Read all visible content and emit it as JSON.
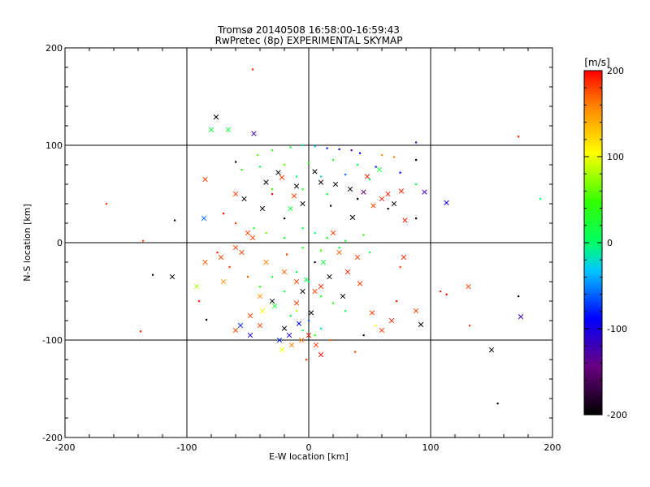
{
  "chart_data": {
    "type": "scatter",
    "title": "Tromsø 20140508 16:58:00-16:59:43",
    "subtitle": "RwPretec (8p) EXPERIMENTAL SKYMAP",
    "xlabel": "E-W location [km]",
    "ylabel": "N-S location [km]",
    "xlim": [
      -200,
      200
    ],
    "ylim": [
      -200,
      200
    ],
    "xticks": [
      "-200",
      "-100",
      "0",
      "100",
      "200"
    ],
    "yticks": [
      "-200",
      "-100",
      "0",
      "100",
      "200"
    ],
    "grid": true,
    "colorbar": {
      "label": "[m/s]",
      "range": [
        -200,
        200
      ],
      "ticks": [
        "-200",
        "-100",
        "0",
        "100",
        "200"
      ],
      "colors": [
        "#000000",
        "#6a0080",
        "#0000ff",
        "#00ffff",
        "#00ff00",
        "#ffff00",
        "#ff0000"
      ]
    },
    "cross_points": [
      [
        -76,
        129,
        -200
      ],
      [
        -80,
        116,
        20
      ],
      [
        -66,
        116,
        20
      ],
      [
        -45,
        112,
        -120
      ],
      [
        -85,
        65,
        180
      ],
      [
        -53,
        45,
        -200
      ],
      [
        -38,
        35,
        -200
      ],
      [
        -86,
        25,
        -60
      ],
      [
        -112,
        -35,
        -200
      ],
      [
        -92,
        -45,
        80
      ],
      [
        -70,
        -40,
        150
      ],
      [
        -46,
        5,
        180
      ],
      [
        -55,
        -10,
        180
      ],
      [
        -35,
        -20,
        160
      ],
      [
        -20,
        -30,
        170
      ],
      [
        -10,
        -40,
        180
      ],
      [
        -40,
        -55,
        150
      ],
      [
        -28,
        -65,
        20
      ],
      [
        -48,
        -75,
        180
      ],
      [
        -56,
        -85,
        -80
      ],
      [
        -38,
        -70,
        100
      ],
      [
        -20,
        -88,
        -200
      ],
      [
        -16,
        -95,
        -100
      ],
      [
        -8,
        -83,
        -90
      ],
      [
        -6,
        -100,
        160
      ],
      [
        6,
        -105,
        180
      ],
      [
        -14,
        -105,
        160
      ],
      [
        -22,
        -110,
        100
      ],
      [
        10,
        -115,
        200
      ],
      [
        0,
        -95,
        190
      ],
      [
        5,
        -50,
        180
      ],
      [
        10,
        -45,
        190
      ],
      [
        25,
        -10,
        170
      ],
      [
        40,
        -15,
        180
      ],
      [
        52,
        -72,
        180
      ],
      [
        60,
        -90,
        180
      ],
      [
        68,
        -80,
        190
      ],
      [
        88,
        -70,
        180
      ],
      [
        92,
        -84,
        -200
      ],
      [
        150,
        -110,
        -200
      ],
      [
        174,
        -76,
        -120
      ],
      [
        131,
        -45,
        180
      ],
      [
        113,
        41,
        -100
      ],
      [
        95,
        52,
        -120
      ],
      [
        76,
        53,
        190
      ],
      [
        79,
        23,
        190
      ],
      [
        60,
        45,
        190
      ],
      [
        53,
        38,
        180
      ],
      [
        36,
        26,
        -200
      ],
      [
        20,
        10,
        180
      ],
      [
        34,
        55,
        -200
      ],
      [
        10,
        62,
        -200
      ],
      [
        5,
        73,
        -200
      ],
      [
        -10,
        58,
        -200
      ],
      [
        -25,
        72,
        -200
      ],
      [
        -35,
        62,
        -200
      ],
      [
        -15,
        35,
        20
      ],
      [
        -5,
        40,
        -200
      ],
      [
        48,
        68,
        190
      ],
      [
        45,
        52,
        -150
      ],
      [
        65,
        50,
        190
      ],
      [
        58,
        75,
        20
      ],
      [
        -22,
        67,
        180
      ],
      [
        -60,
        50,
        180
      ],
      [
        -50,
        10,
        180
      ],
      [
        -60,
        -5,
        180
      ],
      [
        -72,
        -15,
        180
      ],
      [
        -85,
        -20,
        170
      ],
      [
        -30,
        -60,
        -200
      ],
      [
        -40,
        -85,
        180
      ],
      [
        -60,
        -90,
        180
      ],
      [
        -48,
        -95,
        -100
      ],
      [
        -24,
        -100,
        -80
      ],
      [
        -10,
        -62,
        180
      ],
      [
        17,
        -35,
        -200
      ],
      [
        28,
        -55,
        -200
      ],
      [
        12,
        -20,
        20
      ],
      [
        -5,
        -50,
        -200
      ],
      [
        -2,
        -38,
        10
      ],
      [
        2,
        -72,
        -200
      ],
      [
        32,
        -30,
        190
      ],
      [
        42,
        -42,
        180
      ],
      [
        78,
        -15,
        190
      ],
      [
        70,
        40,
        -200
      ],
      [
        -12,
        48,
        180
      ],
      [
        22,
        60,
        -200
      ]
    ],
    "dot_points": [
      [
        -46,
        178,
        190
      ],
      [
        -166,
        40,
        180
      ],
      [
        -110,
        23,
        -200
      ],
      [
        -136,
        2,
        180
      ],
      [
        -128,
        -33,
        -200
      ],
      [
        -138,
        -91,
        190
      ],
      [
        -84,
        -79,
        -200
      ],
      [
        -60,
        83,
        -200
      ],
      [
        -42,
        90,
        60
      ],
      [
        -30,
        95,
        40
      ],
      [
        -15,
        98,
        20
      ],
      [
        -5,
        100,
        -10
      ],
      [
        5,
        99,
        -40
      ],
      [
        15,
        97,
        -80
      ],
      [
        25,
        96,
        -120
      ],
      [
        35,
        95,
        -140
      ],
      [
        42,
        92,
        -100
      ],
      [
        60,
        90,
        150
      ],
      [
        70,
        88,
        160
      ],
      [
        -55,
        75,
        40
      ],
      [
        -40,
        78,
        20
      ],
      [
        -20,
        80,
        60
      ],
      [
        0,
        82,
        40
      ],
      [
        20,
        85,
        30
      ],
      [
        40,
        80,
        10
      ],
      [
        55,
        78,
        -80
      ],
      [
        75,
        72,
        -90
      ],
      [
        88,
        60,
        20
      ],
      [
        -10,
        68,
        0
      ],
      [
        10,
        68,
        -20
      ],
      [
        30,
        70,
        -60
      ],
      [
        50,
        65,
        10
      ],
      [
        -30,
        55,
        60
      ],
      [
        -5,
        55,
        30
      ],
      [
        15,
        50,
        10
      ],
      [
        40,
        45,
        -200
      ],
      [
        65,
        35,
        -200
      ],
      [
        88,
        25,
        -200
      ],
      [
        -70,
        30,
        200
      ],
      [
        -60,
        20,
        180
      ],
      [
        -45,
        15,
        30
      ],
      [
        -35,
        10,
        60
      ],
      [
        -20,
        5,
        20
      ],
      [
        -5,
        15,
        10
      ],
      [
        5,
        10,
        0
      ],
      [
        15,
        5,
        30
      ],
      [
        30,
        2,
        20
      ],
      [
        45,
        8,
        40
      ],
      [
        -5,
        -5,
        30
      ],
      [
        10,
        -8,
        50
      ],
      [
        25,
        -5,
        10
      ],
      [
        50,
        -10,
        10
      ],
      [
        75,
        -25,
        180
      ],
      [
        -75,
        -10,
        190
      ],
      [
        -65,
        -25,
        180
      ],
      [
        -50,
        -35,
        170
      ],
      [
        -40,
        -45,
        40
      ],
      [
        -30,
        -35,
        20
      ],
      [
        -20,
        -50,
        10
      ],
      [
        -10,
        -30,
        10
      ],
      [
        0,
        -40,
        0
      ],
      [
        10,
        -55,
        30
      ],
      [
        20,
        -62,
        40
      ],
      [
        30,
        -70,
        10
      ],
      [
        -15,
        -75,
        20
      ],
      [
        0,
        -80,
        -60
      ],
      [
        10,
        -88,
        -20
      ],
      [
        -5,
        -90,
        10
      ],
      [
        5,
        -95,
        40
      ],
      [
        -10,
        -70,
        80
      ],
      [
        18,
        -100,
        170
      ],
      [
        45,
        -95,
        -200
      ],
      [
        55,
        -85,
        100
      ],
      [
        72,
        -60,
        190
      ],
      [
        108,
        -50,
        190
      ],
      [
        113,
        -53,
        200
      ],
      [
        172,
        -55,
        -200
      ],
      [
        172,
        109,
        190
      ],
      [
        190,
        45,
        0
      ],
      [
        132,
        -85,
        180
      ],
      [
        155,
        -165,
        -200
      ],
      [
        88,
        103,
        -120
      ],
      [
        88,
        85,
        -200
      ],
      [
        -90,
        -60,
        190
      ],
      [
        -20,
        25,
        -200
      ],
      [
        -18,
        -12,
        180
      ],
      [
        -2,
        -120,
        180
      ],
      [
        38,
        -112,
        180
      ],
      [
        -30,
        50,
        200
      ],
      [
        5,
        -20,
        -200
      ],
      [
        18,
        38,
        -200
      ]
    ]
  }
}
